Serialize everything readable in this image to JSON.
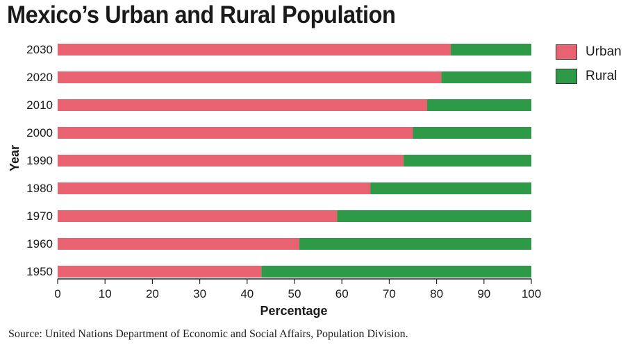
{
  "chart_data": {
    "type": "bar",
    "stacked": true,
    "orientation": "horizontal",
    "title": "Mexico’s Urban and Rural Population",
    "xlabel": "Percentage",
    "ylabel": "Year",
    "xlim": [
      0,
      100
    ],
    "xticks": [
      0,
      10,
      20,
      30,
      40,
      50,
      60,
      70,
      80,
      90,
      100
    ],
    "categories": [
      "2030",
      "2020",
      "2010",
      "2000",
      "1990",
      "1980",
      "1970",
      "1960",
      "1950"
    ],
    "series": [
      {
        "name": "Urban",
        "color": "#e8636f",
        "values": [
          83,
          81,
          78,
          75,
          73,
          66,
          59,
          51,
          43
        ]
      },
      {
        "name": "Rural",
        "color": "#2e9a48",
        "values": [
          17,
          19,
          22,
          25,
          27,
          34,
          41,
          49,
          57
        ]
      }
    ],
    "legend_position": "top-right",
    "grid": false,
    "source": "Source: United Nations Department of Economic and Social Affairs, Population Division."
  }
}
